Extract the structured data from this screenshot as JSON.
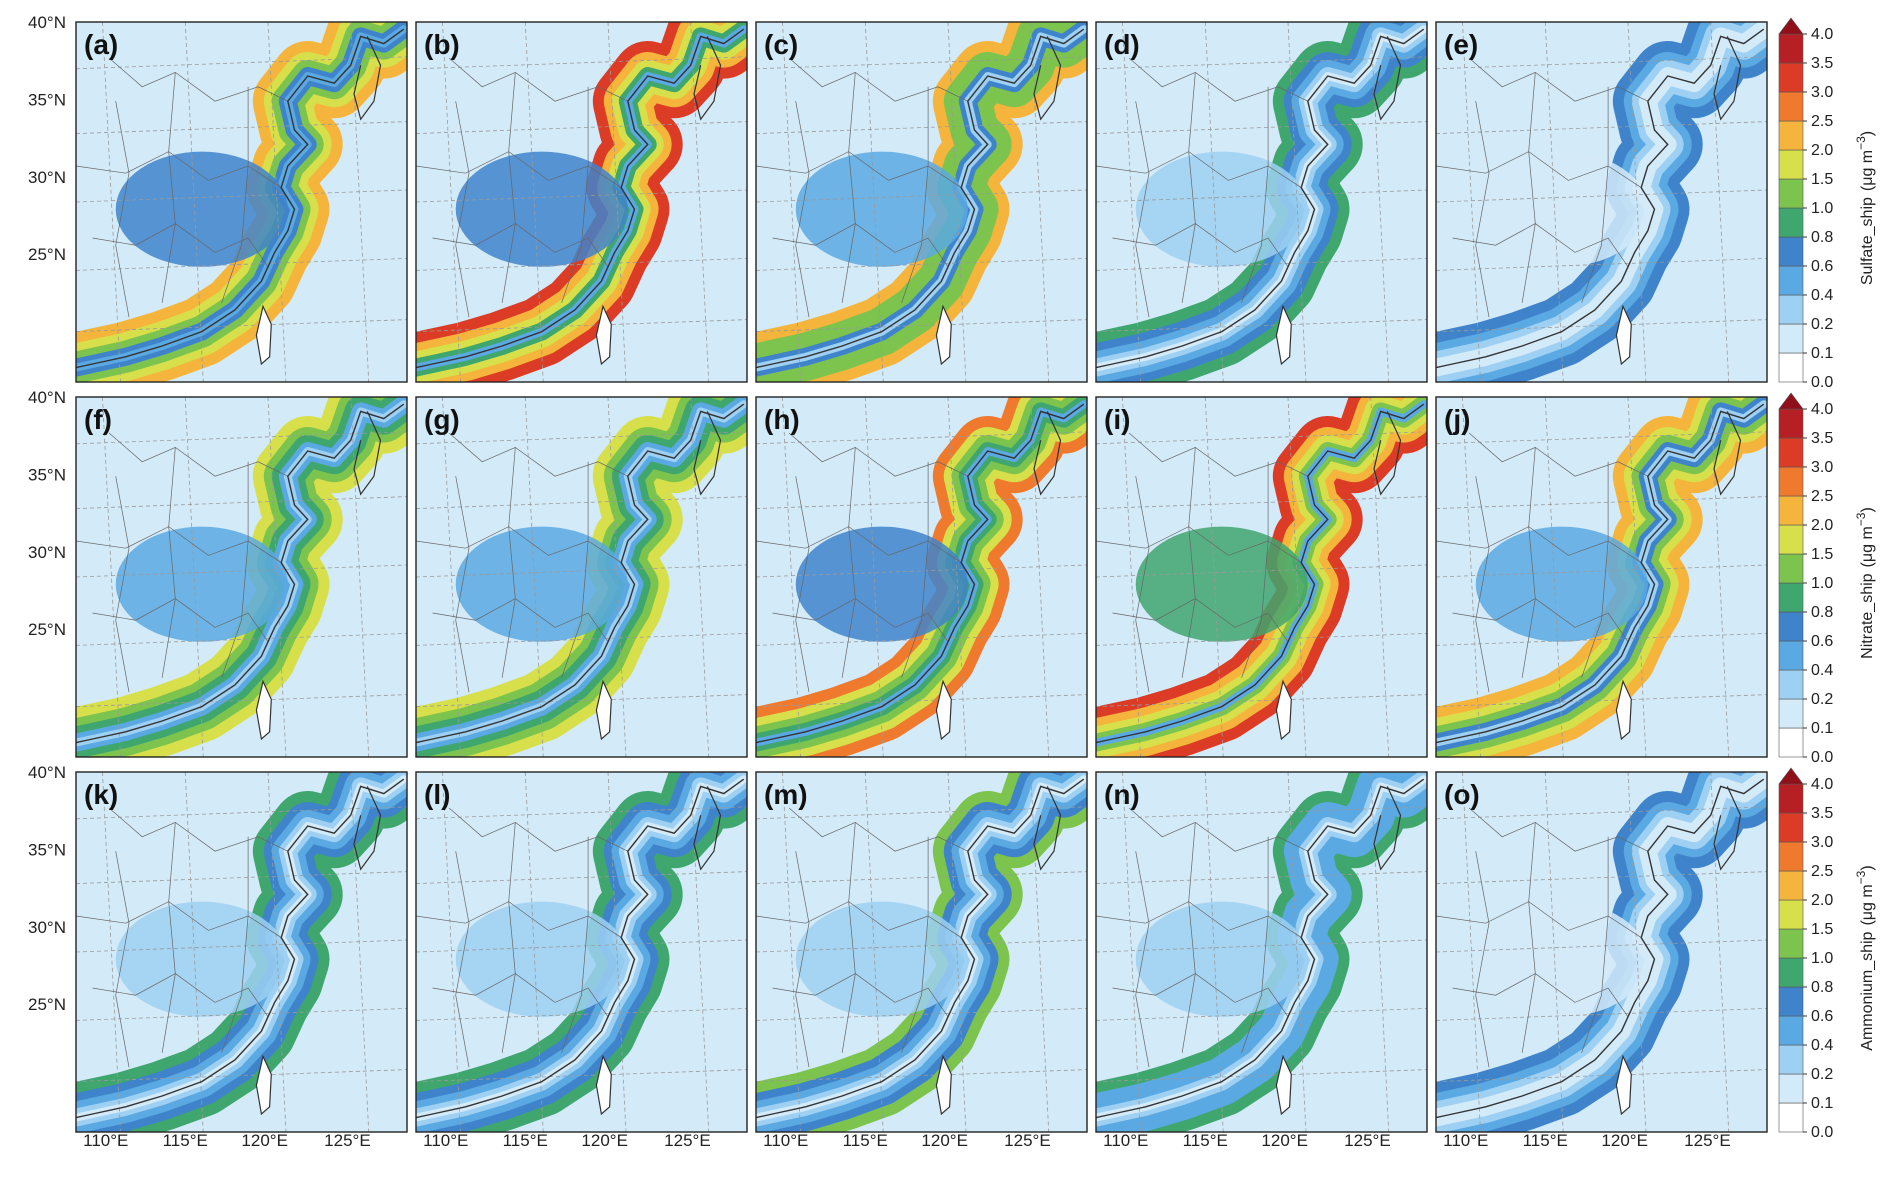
{
  "figure": {
    "rows": [
      {
        "variable": "Sulfate_ship",
        "unit_text": "(μg m",
        "unit_exp": "−3",
        "unit_close": ")",
        "panels": [
          "(a)",
          "(b)",
          "(c)",
          "(d)",
          "(e)"
        ],
        "peaks": [
          2.4,
          3.0,
          2.0,
          0.9,
          0.6
        ]
      },
      {
        "variable": "Nitrate_ship",
        "unit_text": "(μg m",
        "unit_exp": "−3",
        "unit_close": ")",
        "panels": [
          "(f)",
          "(g)",
          "(h)",
          "(i)",
          "(j)"
        ],
        "peaks": [
          1.8,
          1.6,
          2.6,
          3.2,
          2.2
        ]
      },
      {
        "variable": "Ammonium_ship",
        "unit_text": "(μg m",
        "unit_exp": "−3",
        "unit_close": ")",
        "panels": [
          "(k)",
          "(l)",
          "(m)",
          "(n)",
          "(o)"
        ],
        "peaks": [
          0.9,
          0.9,
          1.0,
          0.8,
          0.6
        ]
      }
    ],
    "lat_labels": [
      "40°N",
      "35°N",
      "30°N",
      "25°N"
    ],
    "lon_labels": [
      "110°E",
      "115°E",
      "120°E",
      "125°E"
    ],
    "colorbar": {
      "levels": [
        "0.0",
        "0.1",
        "0.2",
        "0.4",
        "0.6",
        "0.8",
        "1.0",
        "1.5",
        "2.0",
        "2.5",
        "3.0",
        "3.5",
        "4.0"
      ],
      "colors": [
        "#ffffff",
        "#d3eaf9",
        "#9dd0f2",
        "#5aa9e3",
        "#3f84cb",
        "#3fa66e",
        "#7cc44d",
        "#d7e04a",
        "#f5b43c",
        "#ef7a2e",
        "#dc3b26",
        "#b61f24",
        "#8f0f1b"
      ],
      "extend": "max"
    },
    "border_color": "#333333",
    "grid_color": "#9a9a9a"
  }
}
